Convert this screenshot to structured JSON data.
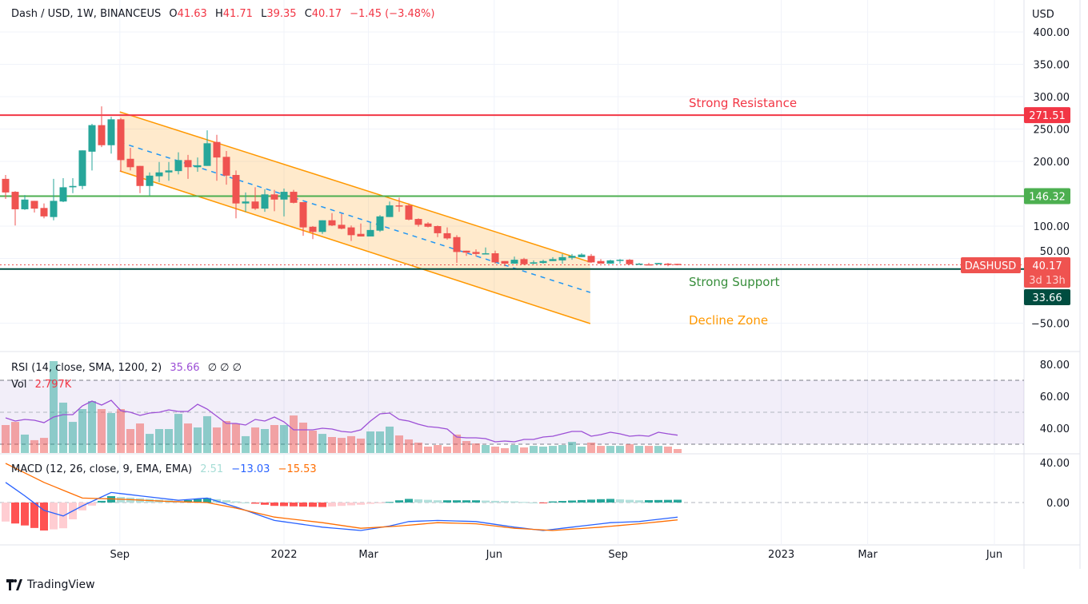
{
  "header": {
    "symbol": "Dash / USD, 1W, BINANCEUS",
    "o_label": "O",
    "o": "41.63",
    "h_label": "H",
    "h": "41.71",
    "l_label": "L",
    "l": "39.35",
    "c_label": "C",
    "c": "40.17",
    "change": "−1.45 (−3.48%)"
  },
  "rsi_legend": {
    "label": "RSI (14, close, SMA, 1200, 2)",
    "value": "35.66",
    "extra": "∅  ∅  ∅"
  },
  "vol_legend": {
    "label": "Vol",
    "value": "2.797K"
  },
  "macd_legend": {
    "label": "MACD (12, 26, close, 9, EMA, EMA)",
    "hist": "2.51",
    "macd": "−13.03",
    "signal": "−15.53"
  },
  "footer": {
    "brand": "TradingView"
  },
  "colors": {
    "up": "#26a69a",
    "down": "#ef5350",
    "resistance": "#f23645",
    "support_mid": "#4caf50",
    "support": "#004d40",
    "channel": "#ff9800",
    "rsi": "#9c4fd6",
    "macd": "#2962ff",
    "signal": "#ff6d00"
  },
  "chart_data": {
    "type": "candlestick",
    "title": "Dash / USD, 1W, BINANCEUS",
    "currency_label": "USD",
    "price_ticks": [
      "400.00",
      "350.00",
      "300.00",
      "250.00",
      "200.00",
      "100.00",
      "50.00",
      "−50.00"
    ],
    "price_tick_values": [
      400,
      350,
      300,
      250,
      200,
      100,
      50,
      -50
    ],
    "ylim": [
      -70,
      430
    ],
    "time_labels": [
      {
        "label": "Sep",
        "week": 11.9
      },
      {
        "label": "2022",
        "week": 29
      },
      {
        "label": "Mar",
        "week": 37.8
      },
      {
        "label": "Jun",
        "week": 50.9
      },
      {
        "label": "Sep",
        "week": 63.8
      },
      {
        "label": "2023",
        "week": 80.8
      },
      {
        "label": "Mar",
        "week": 89.8
      },
      {
        "label": "Jun",
        "week": 103
      }
    ],
    "ohlc": [
      [
        173,
        179,
        142,
        152
      ],
      [
        153,
        154,
        101,
        126
      ],
      [
        126,
        148,
        125,
        141
      ],
      [
        139,
        139,
        121,
        127
      ],
      [
        128,
        135,
        112,
        115
      ],
      [
        114,
        173,
        109,
        139
      ],
      [
        138,
        174,
        137,
        160
      ],
      [
        160,
        174,
        151,
        162
      ],
      [
        162,
        217,
        157,
        217
      ],
      [
        215,
        258,
        186,
        256
      ],
      [
        256,
        285,
        222,
        225
      ],
      [
        225,
        269,
        212,
        265
      ],
      [
        265,
        267,
        184,
        202
      ],
      [
        204,
        221,
        186,
        191
      ],
      [
        193,
        193,
        151,
        162
      ],
      [
        162,
        183,
        147,
        178
      ],
      [
        177,
        199,
        168,
        183
      ],
      [
        183,
        199,
        170,
        186
      ],
      [
        185,
        214,
        180,
        202
      ],
      [
        202,
        210,
        173,
        191
      ],
      [
        191,
        206,
        184,
        194
      ],
      [
        193,
        248,
        193,
        228
      ],
      [
        230,
        241,
        170,
        206
      ],
      [
        207,
        216,
        164,
        178
      ],
      [
        179,
        186,
        112,
        135
      ],
      [
        135,
        152,
        122,
        138
      ],
      [
        138,
        160,
        125,
        127
      ],
      [
        127,
        157,
        122,
        149
      ],
      [
        149,
        156,
        123,
        141
      ],
      [
        141,
        158,
        115,
        153
      ],
      [
        153,
        156,
        135,
        136
      ],
      [
        137,
        137,
        85,
        98
      ],
      [
        99,
        100,
        80,
        91
      ],
      [
        91,
        109,
        88,
        109
      ],
      [
        109,
        120,
        100,
        101
      ],
      [
        102,
        119,
        95,
        96
      ],
      [
        98,
        101,
        77,
        86
      ],
      [
        88,
        104,
        84,
        84
      ],
      [
        84,
        105,
        84,
        94
      ],
      [
        93,
        117,
        91,
        115
      ],
      [
        114,
        138,
        114,
        132
      ],
      [
        132,
        144,
        122,
        131
      ],
      [
        132,
        135,
        109,
        110
      ],
      [
        111,
        112,
        99,
        102
      ],
      [
        104,
        106,
        98,
        99
      ],
      [
        100,
        101,
        83,
        89
      ],
      [
        89,
        98,
        79,
        81
      ],
      [
        83,
        86,
        43,
        60
      ],
      [
        62,
        62,
        54,
        59
      ],
      [
        60,
        64,
        53,
        57
      ],
      [
        57,
        67,
        57,
        58
      ],
      [
        58,
        62,
        42,
        44
      ],
      [
        46,
        46,
        38,
        42
      ],
      [
        42,
        53,
        42,
        48
      ],
      [
        49,
        51,
        40,
        41
      ],
      [
        42,
        47,
        41,
        44
      ],
      [
        43,
        48,
        42,
        46
      ],
      [
        46,
        52,
        46,
        49
      ],
      [
        47,
        57,
        42,
        52
      ],
      [
        51,
        57,
        48,
        54
      ],
      [
        52,
        58,
        52,
        56
      ],
      [
        54,
        57,
        43,
        44
      ],
      [
        46,
        49,
        42,
        42
      ],
      [
        42,
        48,
        42,
        47
      ],
      [
        47,
        49,
        42,
        48
      ],
      [
        48,
        49,
        41,
        41
      ],
      [
        41,
        43,
        41,
        42
      ],
      [
        41,
        43,
        40,
        40.5
      ],
      [
        41,
        43,
        41,
        43
      ],
      [
        42,
        43,
        38,
        40
      ],
      [
        41.63,
        41.71,
        39.35,
        40.17
      ]
    ],
    "volume_k": [
      19.6,
      21.8,
      12.9,
      9,
      10.6,
      64.4,
      35.3,
      21.8,
      30.8,
      36.4,
      30.8,
      28,
      30.8,
      16.8,
      20.7,
      13.4,
      16.8,
      16.8,
      27.4,
      20.7,
      17.9,
      25.8,
      17.9,
      22.4,
      20.7,
      11.8,
      17.9,
      16.8,
      19.6,
      19.6,
      26.3,
      21.3,
      15.7,
      13.4,
      11.2,
      10.6,
      11.8,
      10.1,
      15.1,
      15.1,
      18.5,
      12.3,
      9.5,
      7.3,
      4.5,
      5.6,
      4.5,
      12.9,
      8.4,
      6.7,
      5.6,
      4.5,
      3.4,
      5.6,
      3.9,
      5,
      4.5,
      5,
      5.6,
      7.8,
      4.5,
      7.3,
      5,
      5,
      5,
      6.2,
      5,
      5,
      5,
      4.5,
      2.797
    ],
    "rsi": [
      46.5,
      44.5,
      45.5,
      45,
      43.5,
      47,
      48.5,
      48.5,
      54,
      57,
      54.5,
      57.5,
      51,
      50,
      48,
      49.5,
      50,
      51.5,
      50.5,
      50.5,
      55,
      52,
      47.5,
      43,
      43,
      42,
      45.5,
      44.5,
      47,
      44,
      39,
      39,
      39,
      40,
      39.5,
      38,
      37.5,
      39,
      44.5,
      49,
      49.5,
      45.5,
      44.5,
      42.5,
      41,
      40.5,
      39.5,
      34.5,
      34,
      34,
      33.5,
      31.5,
      32,
      31.5,
      33,
      33,
      34.5,
      35,
      36.5,
      38,
      38,
      35,
      36,
      37.5,
      36.5,
      35,
      35.5,
      35,
      37.5,
      36.5,
      35.66
    ],
    "rsi_levels": [
      70,
      50,
      30
    ],
    "rsi_ticks": [
      "80.00",
      "60.00",
      "40.00"
    ],
    "rsi_tick_values": [
      80,
      60,
      40
    ],
    "macd_points": [
      [
        0,
        18
      ],
      [
        2,
        6
      ],
      [
        4,
        -7
      ],
      [
        6,
        -12
      ],
      [
        8,
        -3
      ],
      [
        11,
        9
      ],
      [
        14,
        6
      ],
      [
        18,
        2
      ],
      [
        21,
        4
      ],
      [
        24,
        -4
      ],
      [
        28,
        -16
      ],
      [
        33,
        -22
      ],
      [
        37,
        -25
      ],
      [
        40,
        -21
      ],
      [
        42,
        -17
      ],
      [
        45,
        -16
      ],
      [
        49,
        -17
      ],
      [
        53,
        -22
      ],
      [
        56,
        -25
      ],
      [
        59,
        -22
      ],
      [
        63,
        -18
      ],
      [
        66,
        -17
      ],
      [
        70,
        -13.03
      ]
    ],
    "signal_points": [
      [
        0,
        35
      ],
      [
        4,
        18
      ],
      [
        8,
        4
      ],
      [
        12,
        3
      ],
      [
        17,
        1
      ],
      [
        21,
        0
      ],
      [
        24,
        -5
      ],
      [
        28,
        -13
      ],
      [
        33,
        -18
      ],
      [
        37,
        -23
      ],
      [
        41,
        -21
      ],
      [
        45,
        -18
      ],
      [
        49,
        -19
      ],
      [
        53,
        -23
      ],
      [
        57,
        -25
      ],
      [
        62,
        -22
      ],
      [
        66,
        -19
      ],
      [
        70,
        -15.53
      ]
    ],
    "macd_ticks": [
      "40.00",
      "0.00"
    ],
    "macd_tick_values": [
      40,
      0
    ],
    "levels": [
      {
        "name": "resistance",
        "price": 271.51,
        "label": "271.51",
        "text": "Strong Resistance"
      },
      {
        "name": "mid-support",
        "price": 146.32,
        "label": "146.32"
      },
      {
        "name": "support",
        "price": 33.66,
        "label": "33.66",
        "text": "Strong Support"
      }
    ],
    "channel": {
      "start_week": 11.9,
      "end_week": 60.9,
      "upper": [
        276.5,
        44.4
      ],
      "lower": [
        185.2,
        -50.6
      ],
      "middle": [
        229.6,
        -2.5
      ],
      "text": "Decline Zone"
    },
    "last_price": {
      "symbol": "DASHUSD",
      "price": 40.17,
      "label": "40.17",
      "countdown": "3d 13h"
    }
  }
}
